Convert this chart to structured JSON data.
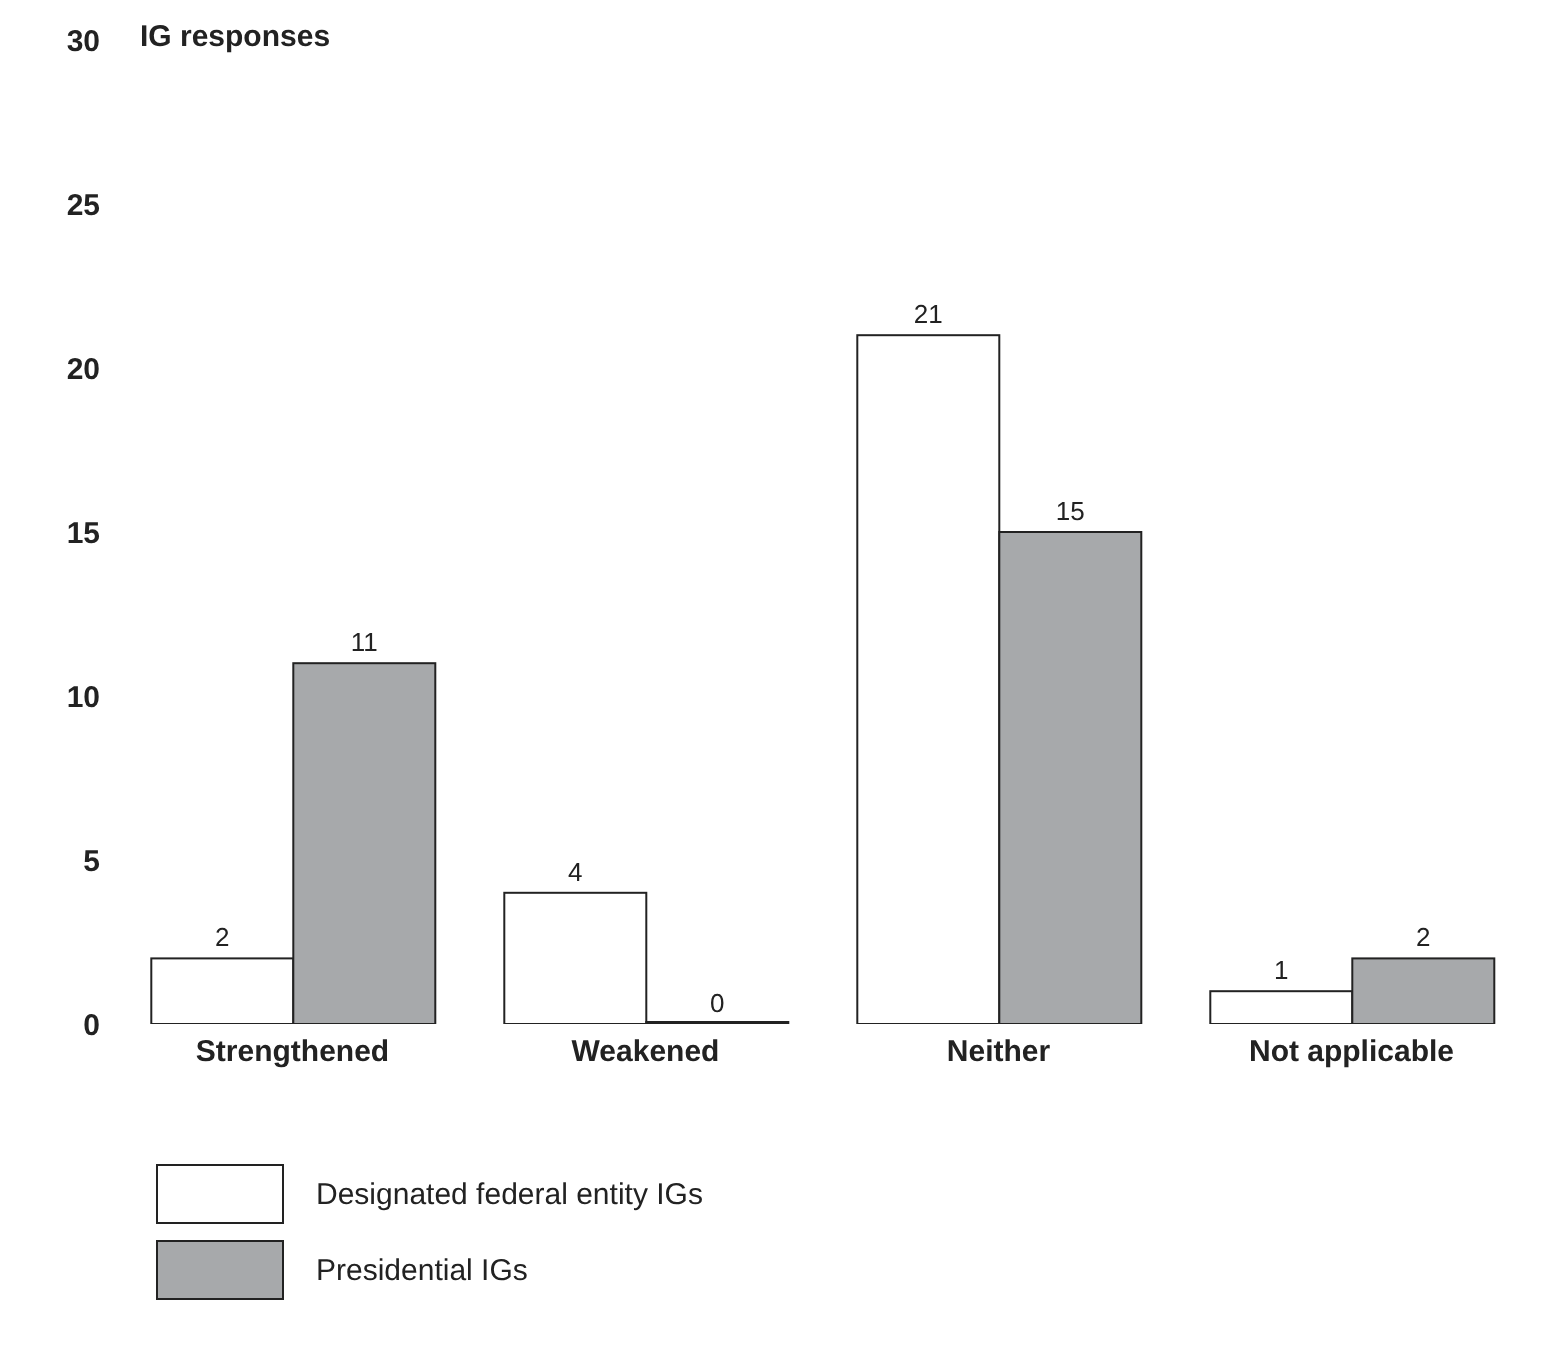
{
  "chart_data": {
    "type": "bar",
    "ylabel": "IG responses",
    "categories": [
      "Strengthened",
      "Weakened",
      "Neither",
      "Not applicable"
    ],
    "series": [
      {
        "name": "Designated federal entity IGs",
        "color": "#ffffff",
        "values": [
          2,
          4,
          21,
          1
        ]
      },
      {
        "name": "Presidential IGs",
        "color": "#a7a9ab",
        "values": [
          11,
          0,
          15,
          2
        ]
      }
    ],
    "ylim": [
      0,
      30
    ],
    "yticks": [
      0,
      5,
      10,
      15,
      20,
      25,
      30
    ],
    "grid": false,
    "legend": "bottom left",
    "data_labels": true
  }
}
